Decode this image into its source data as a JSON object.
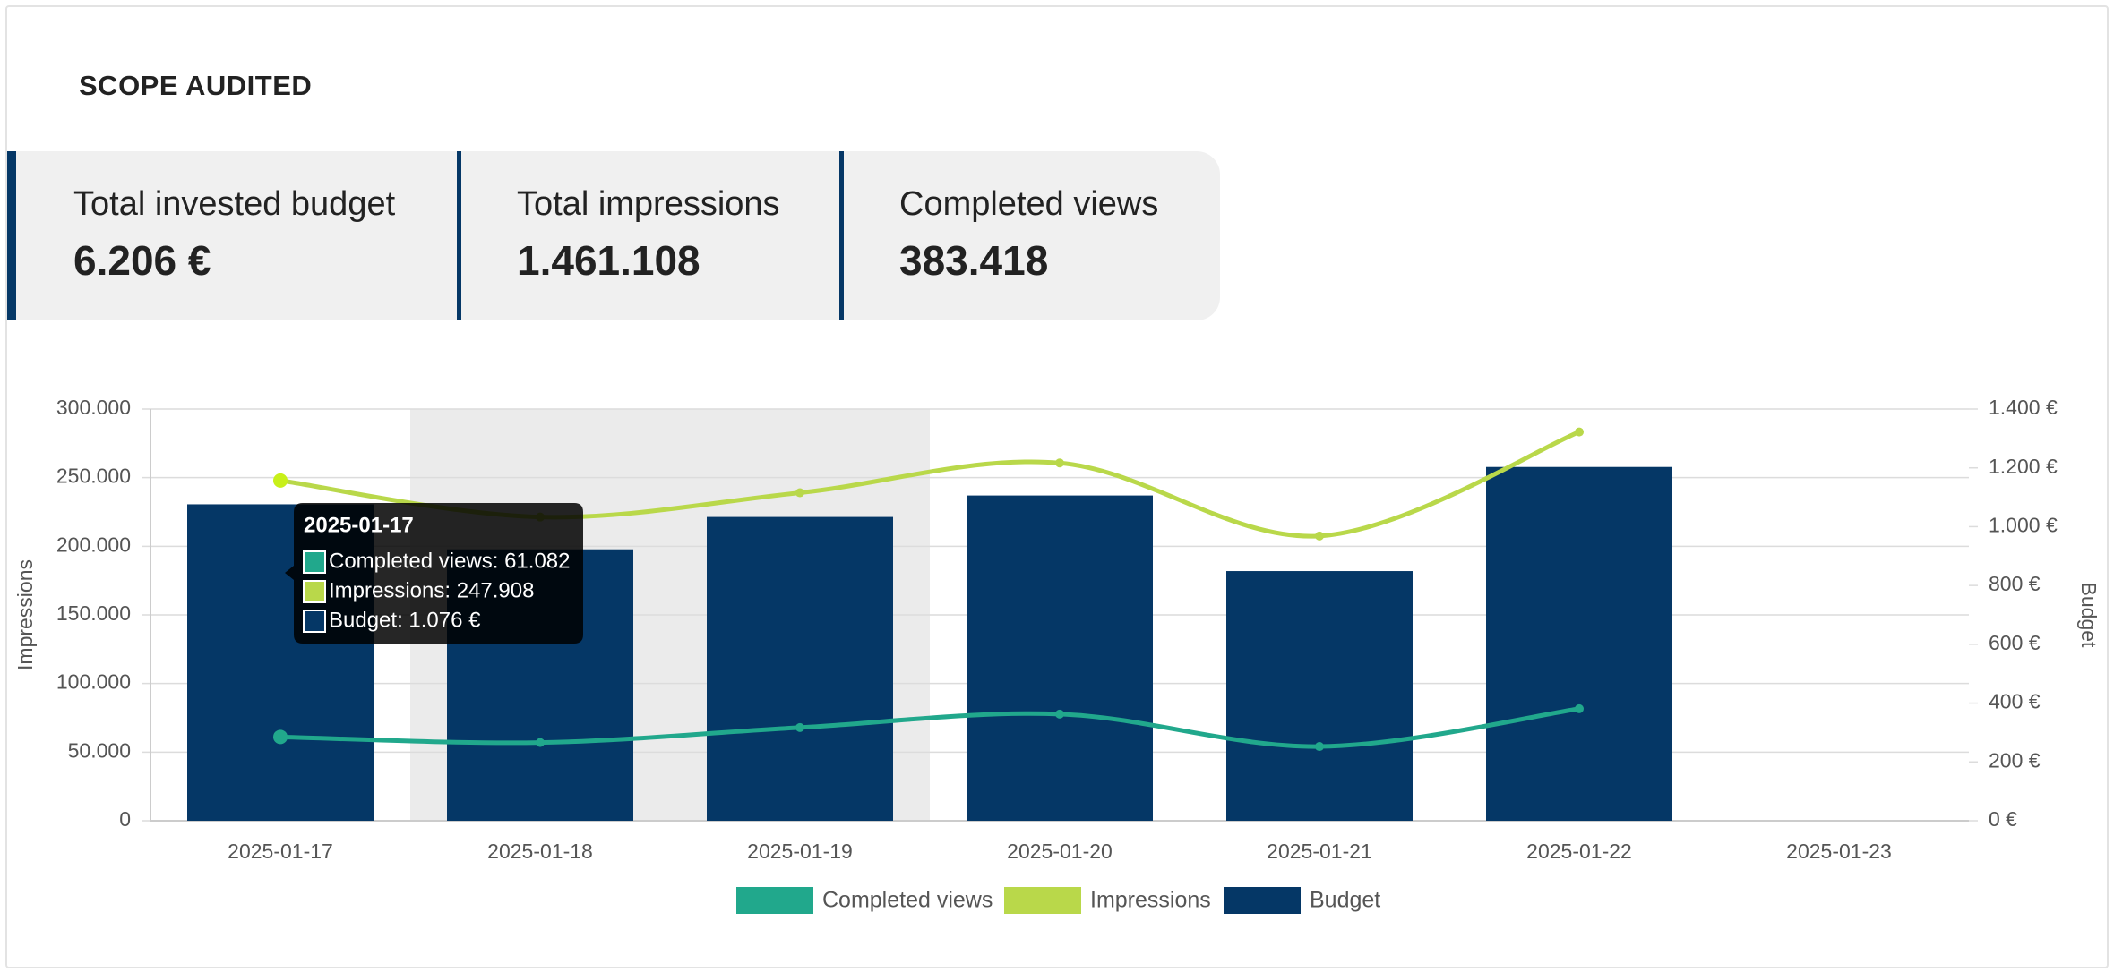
{
  "header": {
    "title": "SCOPE AUDITED"
  },
  "kpis": [
    {
      "label": "Total invested budget",
      "value": "6.206 €"
    },
    {
      "label": "Total impressions",
      "value": "1.461.108"
    },
    {
      "label": "Completed views",
      "value": "383.418"
    }
  ],
  "chart_data": {
    "type": "combo",
    "categories": [
      "2025-01-17",
      "2025-01-18",
      "2025-01-19",
      "2025-01-20",
      "2025-01-21",
      "2025-01-22",
      "2025-01-23"
    ],
    "y_label": "Impressions",
    "y2_label": "Budget",
    "ylim": [
      0,
      300000
    ],
    "yticks": [
      0,
      {
        "value": 50000,
        "label": "50.000"
      },
      {
        "value": 100000,
        "label": "100.000"
      },
      {
        "value": 150000,
        "label": "150.000"
      },
      {
        "value": 200000,
        "label": "200.000"
      },
      {
        "value": 250000,
        "label": "250.000"
      },
      {
        "value": 300000,
        "label": "300.000"
      }
    ],
    "y2lim": [
      0,
      1400
    ],
    "y2ticks": [
      {
        "value": 0,
        "label": "0 €"
      },
      {
        "value": 200,
        "label": "200 €"
      },
      {
        "value": 400,
        "label": "400 €"
      },
      {
        "value": 600,
        "label": "600 €"
      },
      {
        "value": 800,
        "label": "800 €"
      },
      {
        "value": 1000,
        "label": "1.000 €"
      },
      {
        "value": 1200,
        "label": "1.200 €"
      },
      {
        "value": 1400,
        "label": "1.400 €"
      }
    ],
    "grid": true,
    "legend": "bottom",
    "series": [
      {
        "name": "Completed views",
        "type": "line",
        "color": "#21a88c",
        "values": [
          61082,
          57000,
          67900,
          77700,
          54100,
          81600,
          null
        ]
      },
      {
        "name": "Impressions",
        "type": "line",
        "color": "#b9d84a",
        "values": [
          247908,
          221300,
          239000,
          260700,
          207500,
          283300,
          null
        ]
      },
      {
        "name": "Budget",
        "type": "bar",
        "axis": "y2",
        "color": "#053766",
        "values": [
          1076,
          923,
          1033,
          1106,
          849,
          1203,
          null
        ]
      }
    ],
    "tooltip": {
      "title": "2025-01-17",
      "items": [
        "Completed views: 61.082",
        "Impressions: 247.908",
        "Budget: 1.076 €"
      ]
    }
  }
}
